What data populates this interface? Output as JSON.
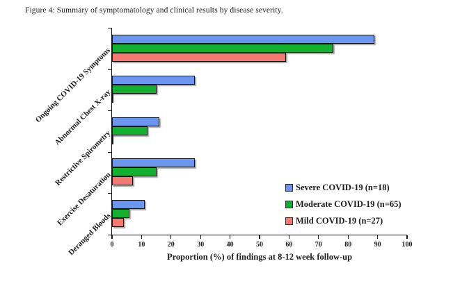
{
  "figure": {
    "caption": "Figure 4: Summary of symptomatology and clinical results by disease severity."
  },
  "chart_data": {
    "type": "bar",
    "orientation": "horizontal",
    "title": "Figure 4: Summary of symptomatology and clinical results by disease severity.",
    "categories": [
      "Ongoing COVID-19 Symptoms",
      "Abnormal Chest X-ray",
      "Restrictive Spirometry",
      "Exercise Desaturation",
      "Deranged Bloods"
    ],
    "series": [
      {
        "name": "Severe COVID-19 (n=18)",
        "color": "#6a96f0",
        "values": [
          89,
          28,
          16,
          28,
          11
        ]
      },
      {
        "name": "Moderate COVID-19 (n=65)",
        "color": "#12b02f",
        "values": [
          75,
          15,
          12,
          15,
          6
        ]
      },
      {
        "name": "Mild COVID-19 (n=27)",
        "color": "#f5796f",
        "values": [
          59,
          0,
          0,
          7,
          4
        ]
      }
    ],
    "xlabel": "Proportion (%) of findings at 8-12 week follow-up",
    "ylabel": "",
    "xlim": [
      0,
      100
    ],
    "x_ticks": [
      0,
      10,
      20,
      30,
      40,
      50,
      60,
      70,
      80,
      90,
      100
    ],
    "grid": false,
    "legend_position": "right-bottom-inside",
    "axis_color": "#111111",
    "bar_border_color": "#111111"
  }
}
